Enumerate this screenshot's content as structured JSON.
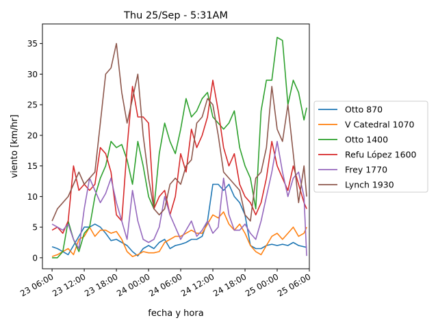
{
  "chart_data": {
    "type": "line",
    "title": "Thu 25/Sep - 5:31AM",
    "xlabel": "fecha y hora",
    "ylabel": "viento [km/hr]",
    "x_unit": "hours since 23 06:00",
    "xlim": [
      -1.8,
      48
    ],
    "ylim": [
      -1.8,
      38.2
    ],
    "xticks": [
      {
        "h": 0,
        "label": "23 06:00"
      },
      {
        "h": 6,
        "label": "23 12:00"
      },
      {
        "h": 12,
        "label": "23 18:00"
      },
      {
        "h": 18,
        "label": "24 00:00"
      },
      {
        "h": 24,
        "label": "24 06:00"
      },
      {
        "h": 30,
        "label": "24 12:00"
      },
      {
        "h": 36,
        "label": "24 18:00"
      },
      {
        "h": 42,
        "label": "25 00:00"
      },
      {
        "h": 48,
        "label": "25 06:00"
      }
    ],
    "yticks": [
      0,
      5,
      10,
      15,
      20,
      25,
      30,
      35
    ],
    "legend_placement": "right",
    "x": [
      0,
      1,
      2,
      3,
      4,
      5,
      6,
      7,
      8,
      9,
      10,
      11,
      12,
      13,
      14,
      15,
      16,
      17,
      18,
      19,
      20,
      21,
      22,
      23,
      24,
      25,
      26,
      27,
      28,
      29,
      30,
      31,
      32,
      33,
      34,
      35,
      36,
      37,
      38,
      39,
      40,
      41,
      42,
      43,
      44,
      45,
      46,
      47,
      47.5
    ],
    "series": [
      {
        "name": "Otto 870",
        "color": "#1f77b4",
        "values": [
          1.8,
          1.5,
          1.0,
          0.5,
          2,
          3.5,
          5,
          5,
          5.5,
          5,
          4,
          2.8,
          3,
          2.5,
          2,
          1,
          0.3,
          1.5,
          2,
          1.5,
          2.5,
          3,
          1.5,
          2,
          2.2,
          2.5,
          3,
          3,
          3.5,
          6,
          12,
          12,
          11,
          12,
          10,
          9,
          7,
          2,
          1.5,
          1.5,
          2,
          2.2,
          2,
          2.2,
          2,
          2.5,
          2,
          1.8,
          1.7
        ]
      },
      {
        "name": "V Catedral 1070",
        "color": "#ff7f0e",
        "values": [
          0.2,
          0.5,
          1,
          1.5,
          0.5,
          3,
          3.5,
          5,
          3.5,
          4.5,
          4.5,
          4,
          4.3,
          3,
          1,
          0.2,
          0.5,
          1,
          0.8,
          0.8,
          1,
          2.5,
          3,
          3.5,
          3.5,
          4,
          4.5,
          4,
          4,
          5.5,
          7,
          6.5,
          7.5,
          5.5,
          4.5,
          5.5,
          4,
          2,
          1,
          0.5,
          2,
          3.5,
          4,
          3,
          4,
          5,
          3.5,
          4,
          5
        ]
      },
      {
        "name": "Otto 1400",
        "color": "#2ca02c",
        "values": [
          0,
          0,
          1,
          6,
          3,
          1,
          4,
          5,
          10,
          13,
          15,
          19,
          18,
          18.5,
          16,
          12,
          19,
          15,
          10,
          8,
          17,
          22,
          19,
          17,
          21,
          26,
          23,
          24,
          26,
          27,
          23,
          22,
          21,
          22,
          24,
          18,
          15,
          13,
          8,
          24,
          29,
          29,
          36,
          35.5,
          25,
          29,
          27,
          22.5,
          24.5
        ]
      },
      {
        "name": "Refu López 1600",
        "color": "#d62728",
        "values": [
          4.5,
          5,
          4,
          6,
          15,
          11,
          12,
          11,
          12,
          18,
          17,
          14,
          7,
          6,
          18,
          28,
          23,
          23,
          22,
          8,
          10,
          11,
          7,
          10,
          17,
          14,
          21,
          18,
          20,
          23,
          29,
          24,
          18,
          15,
          17,
          12,
          10,
          9,
          7,
          9,
          13,
          19,
          15,
          13,
          11,
          15,
          12,
          9,
          8
        ]
      },
      {
        "name": "Frey 1770",
        "color": "#9467bd",
        "values": [
          5.5,
          5,
          4.5,
          5.5,
          3,
          1.5,
          8,
          13,
          11,
          9,
          10.5,
          13,
          9,
          6,
          3,
          11,
          6,
          3,
          2.5,
          3,
          5,
          10,
          7,
          5,
          3,
          4.5,
          6,
          3.5,
          4.5,
          6,
          4,
          5,
          13,
          7,
          4.5,
          4.5,
          5.5,
          4,
          3,
          6,
          10,
          14,
          19,
          14,
          10,
          13,
          14,
          10,
          0.3
        ]
      },
      {
        "name": "Lynch 1930",
        "color": "#8c564b",
        "values": [
          6,
          8,
          9,
          10,
          12,
          14,
          12,
          13,
          14,
          22,
          30,
          31,
          35,
          27,
          22,
          26,
          30,
          20,
          13,
          8,
          7,
          8,
          12,
          13,
          12,
          15,
          16,
          22,
          23,
          26,
          25,
          20,
          14,
          13,
          12,
          11,
          7,
          6,
          13,
          14,
          18,
          28,
          21,
          19,
          25,
          17,
          9,
          15,
          10
        ]
      }
    ]
  }
}
